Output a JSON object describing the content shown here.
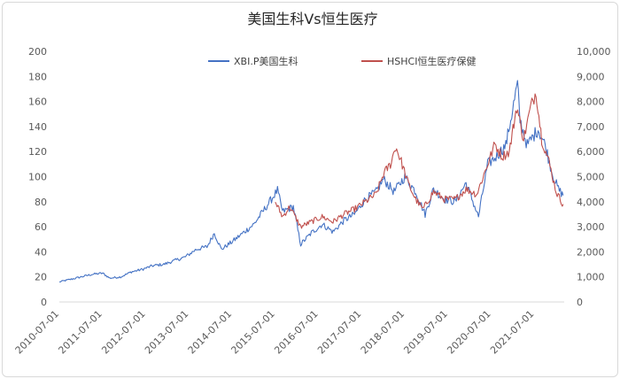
{
  "chart_data": {
    "type": "line",
    "title": "美国生科Vs恒生医疗",
    "legend_position": "top",
    "grid": false,
    "x_labels": [
      "2010-07-01",
      "2011-07-01",
      "2012-07-01",
      "2013-07-01",
      "2014-07-01",
      "2015-07-01",
      "2016-07-01",
      "2017-07-01",
      "2018-07-01",
      "2019-07-01",
      "2020-07-01",
      "2021-07-01"
    ],
    "y_left": {
      "min": 0,
      "max": 200,
      "ticks": [
        "0",
        "20",
        "40",
        "60",
        "80",
        "100",
        "120",
        "140",
        "160",
        "180",
        "200"
      ]
    },
    "y_right": {
      "min": 0,
      "max": 10000,
      "ticks": [
        "0",
        "1,000",
        "2,000",
        "3,000",
        "4,000",
        "5,000",
        "6,000",
        "7,000",
        "8,000",
        "9,000",
        "10,000"
      ]
    },
    "series": [
      {
        "name": "XBI.P美国生科",
        "axis": "left",
        "color": "#4472c4",
        "points": [
          [
            "2010-07-01",
            16
          ],
          [
            "2010-10-01",
            18
          ],
          [
            "2011-01-01",
            20
          ],
          [
            "2011-04-01",
            22
          ],
          [
            "2011-07-01",
            23
          ],
          [
            "2011-09-01",
            19
          ],
          [
            "2011-12-01",
            20
          ],
          [
            "2012-03-01",
            24
          ],
          [
            "2012-06-01",
            26
          ],
          [
            "2012-09-01",
            29
          ],
          [
            "2012-12-01",
            30
          ],
          [
            "2013-03-01",
            33
          ],
          [
            "2013-06-01",
            36
          ],
          [
            "2013-09-01",
            42
          ],
          [
            "2013-12-01",
            44
          ],
          [
            "2014-02-01",
            55
          ],
          [
            "2014-04-01",
            42
          ],
          [
            "2014-07-01",
            48
          ],
          [
            "2014-10-01",
            55
          ],
          [
            "2015-01-01",
            62
          ],
          [
            "2015-04-01",
            74
          ],
          [
            "2015-07-20",
            89
          ],
          [
            "2015-09-01",
            72
          ],
          [
            "2015-12-01",
            76
          ],
          [
            "2016-02-01",
            46
          ],
          [
            "2016-05-01",
            55
          ],
          [
            "2016-08-01",
            62
          ],
          [
            "2016-11-01",
            56
          ],
          [
            "2017-02-01",
            65
          ],
          [
            "2017-05-01",
            70
          ],
          [
            "2017-08-01",
            82
          ],
          [
            "2017-11-01",
            88
          ],
          [
            "2018-01-01",
            98
          ],
          [
            "2018-04-01",
            88
          ],
          [
            "2018-07-01",
            100
          ],
          [
            "2018-10-01",
            88
          ],
          [
            "2018-12-20",
            70
          ],
          [
            "2019-03-01",
            90
          ],
          [
            "2019-06-01",
            82
          ],
          [
            "2019-09-01",
            80
          ],
          [
            "2019-12-01",
            95
          ],
          [
            "2020-03-15",
            68
          ],
          [
            "2020-06-01",
            110
          ],
          [
            "2020-08-01",
            115
          ],
          [
            "2020-11-01",
            125
          ],
          [
            "2021-02-08",
            174
          ],
          [
            "2021-03-01",
            145
          ],
          [
            "2021-05-01",
            125
          ],
          [
            "2021-08-01",
            138
          ],
          [
            "2021-10-01",
            125
          ],
          [
            "2021-12-01",
            102
          ],
          [
            "2022-01-20",
            90
          ],
          [
            "2022-03-01",
            85
          ]
        ]
      },
      {
        "name": "HSHCI恒生医疗保健",
        "axis": "right",
        "color": "#c0504d",
        "points": [
          [
            "2015-07-01",
            4000
          ],
          [
            "2015-09-01",
            3400
          ],
          [
            "2015-11-01",
            3800
          ],
          [
            "2016-02-01",
            3000
          ],
          [
            "2016-05-01",
            3200
          ],
          [
            "2016-08-01",
            3400
          ],
          [
            "2016-11-01",
            3200
          ],
          [
            "2017-02-01",
            3500
          ],
          [
            "2017-05-01",
            3700
          ],
          [
            "2017-08-01",
            4000
          ],
          [
            "2017-11-01",
            4300
          ],
          [
            "2018-01-01",
            5100
          ],
          [
            "2018-03-01",
            5500
          ],
          [
            "2018-04-15",
            6200
          ],
          [
            "2018-06-01",
            5600
          ],
          [
            "2018-08-01",
            4700
          ],
          [
            "2018-10-01",
            4100
          ],
          [
            "2018-12-01",
            3700
          ],
          [
            "2019-03-01",
            4400
          ],
          [
            "2019-06-01",
            4100
          ],
          [
            "2019-09-01",
            4100
          ],
          [
            "2019-12-01",
            4500
          ],
          [
            "2020-03-01",
            4300
          ],
          [
            "2020-06-01",
            5500
          ],
          [
            "2020-08-01",
            6300
          ],
          [
            "2020-10-01",
            5800
          ],
          [
            "2020-12-01",
            6000
          ],
          [
            "2021-02-01",
            7800
          ],
          [
            "2021-04-01",
            6500
          ],
          [
            "2021-06-01",
            7800
          ],
          [
            "2021-07-15",
            8400
          ],
          [
            "2021-09-01",
            6500
          ],
          [
            "2021-11-01",
            5600
          ],
          [
            "2022-01-01",
            4400
          ],
          [
            "2022-02-15",
            4000
          ],
          [
            "2022-03-01",
            3900
          ]
        ]
      }
    ]
  }
}
